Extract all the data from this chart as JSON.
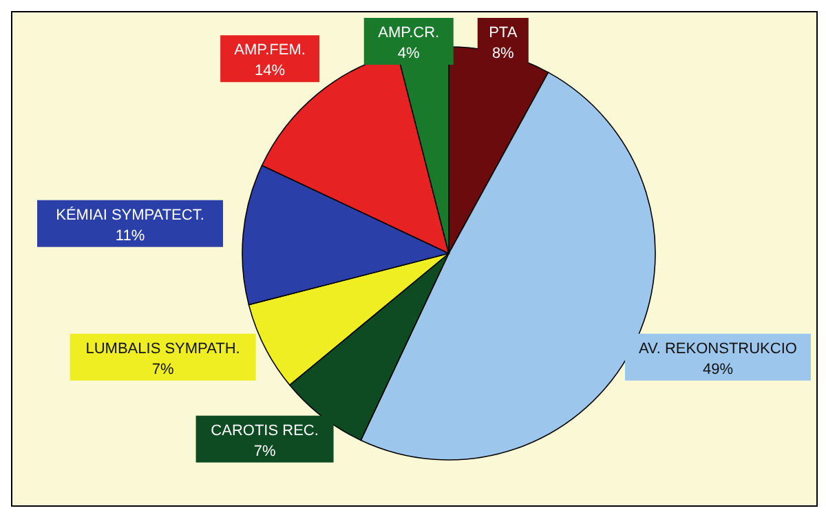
{
  "chart_data": {
    "type": "pie",
    "categories": [
      "PTA",
      "AV. REKONSTRUKCIO",
      "CAROTIS REC.",
      "LUMBALIS SYMPATH.",
      "KÉMIAI SYMPATECT.",
      "AMP.FEM.",
      "AMP.CR."
    ],
    "values": [
      8,
      49,
      7,
      7,
      11,
      14,
      4
    ],
    "value_labels": [
      "8%",
      "49%",
      "7%",
      "7%",
      "11%",
      "14%",
      "4%"
    ],
    "colors": [
      "#6b0b0e",
      "#9dc6ec",
      "#0e4a22",
      "#eeee22",
      "#2a40a8",
      "#e62222",
      "#1a7a2c"
    ]
  }
}
